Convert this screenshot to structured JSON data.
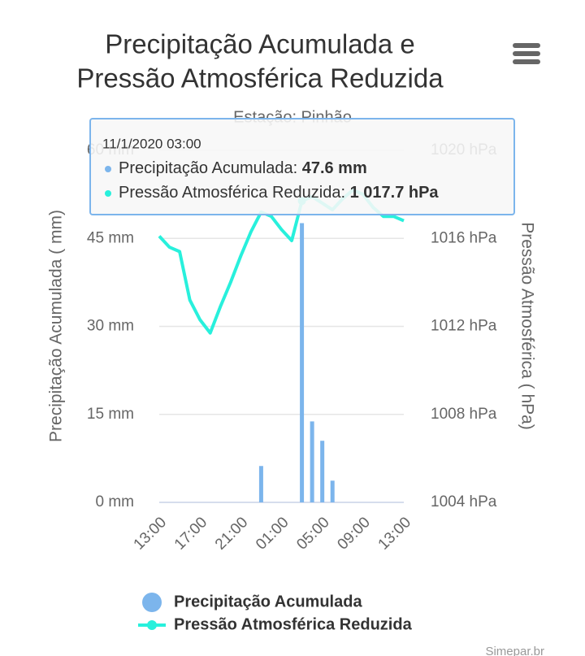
{
  "chart_data": {
    "type": "bar_line",
    "title": [
      "Precipitação Acumulada e",
      "Pressão Atmosférica Reduzida"
    ],
    "subtitle": "Estação: Pinhão",
    "categories": [
      "13:00",
      null,
      null,
      null,
      "17:00",
      null,
      null,
      null,
      "21:00",
      null,
      null,
      null,
      "01:00",
      null,
      null,
      null,
      "05:00",
      null,
      null,
      null,
      "09:00",
      null,
      null,
      null,
      "13:00"
    ],
    "series": [
      {
        "name": "Precipitação Acumulada",
        "type": "bar",
        "color": "#7cb5ec",
        "values": [
          0,
          0,
          0,
          0,
          0,
          0,
          0,
          0,
          0,
          0,
          6.2,
          0,
          0,
          0,
          47.6,
          13.8,
          10.5,
          3.7,
          0,
          0,
          0,
          0,
          0,
          0,
          0
        ]
      },
      {
        "name": "Pressão Atmosférica Reduzida",
        "type": "line",
        "axis": "y2",
        "color": "#28f0dc",
        "values": [
          1016.1,
          1015.6,
          1015.4,
          1013.2,
          1012.3,
          1011.7,
          1012.9,
          1014.0,
          1015.2,
          1016.3,
          1017.2,
          1017.0,
          1016.4,
          1015.9,
          1017.7,
          1017.9,
          1017.6,
          1017.3,
          1017.8,
          1018.2,
          1018.0,
          1017.4,
          1017.0,
          1017.0,
          1016.8
        ]
      }
    ],
    "ylabel": "Precipitação Acumulada ( mm)",
    "y2label": "Pressão Atmosférica ( hPa)",
    "ylim": [
      0,
      60
    ],
    "yticks": [
      {
        "value": 0,
        "label": "0 mm"
      },
      {
        "value": 15,
        "label": "15 mm"
      },
      {
        "value": 30,
        "label": "30 mm"
      },
      {
        "value": 45,
        "label": "45 mm"
      },
      {
        "value": 60,
        "label": "60 mm"
      }
    ],
    "y2lim": [
      1004,
      1020
    ],
    "y2ticks": [
      {
        "value": 1004,
        "label": "1004 hPa"
      },
      {
        "value": 1008,
        "label": "1008 hPa"
      },
      {
        "value": 1012,
        "label": "1012 hPa"
      },
      {
        "value": 1016,
        "label": "1016 hPa"
      },
      {
        "value": 1020,
        "label": "1020 hPa"
      }
    ],
    "grid": true,
    "tooltip": {
      "index": 14,
      "header": "11/1/2020 03:00",
      "items": [
        {
          "label": "Precipitação Acumulada:",
          "value": "47.6 mm"
        },
        {
          "label": "Pressão Atmosférica Reduzida:",
          "value": "1 017.7 hPa"
        }
      ]
    },
    "credits": "Simepar.br"
  }
}
